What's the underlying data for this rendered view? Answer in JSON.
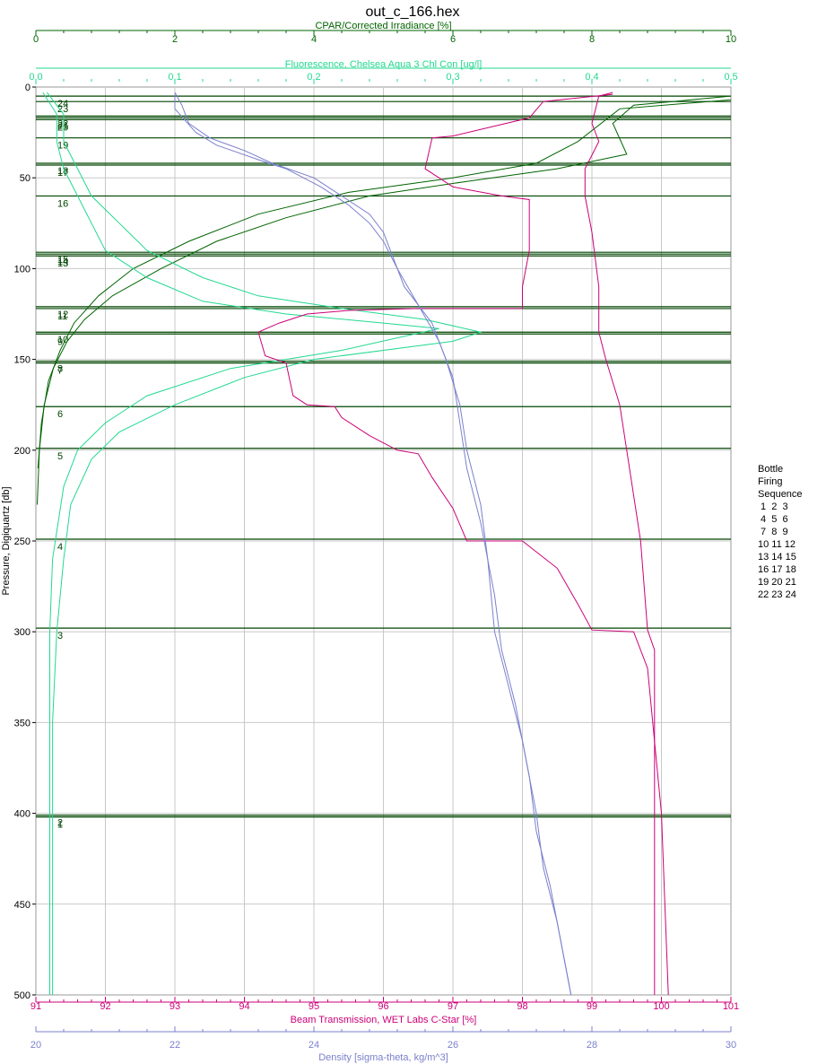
{
  "title": "out_c_166.hex",
  "chart_data": {
    "type": "line",
    "y_axis": {
      "label": "Pressure, Digiquartz [db]",
      "range": [
        0,
        500
      ],
      "ticks": [
        0,
        50,
        100,
        150,
        200,
        250,
        300,
        350,
        400,
        450,
        500
      ],
      "inverted": true
    },
    "x_axes": [
      {
        "key": "cpar",
        "label": "CPAR/Corrected Irradiance [%]",
        "position": "top-outer",
        "color": "#006400",
        "range": [
          0,
          10
        ],
        "ticks": [
          "0",
          "2",
          "4",
          "6",
          "8",
          "10"
        ]
      },
      {
        "key": "fluor",
        "label": "Fluorescence, Chelsea Aqua 3 Chl Con [ug/l]",
        "position": "top-inner",
        "color": "#22d990",
        "range": [
          0,
          0.5
        ],
        "ticks": [
          "0.0",
          "0.1",
          "0.2",
          "0.3",
          "0.4",
          "0.5"
        ]
      },
      {
        "key": "trans",
        "label": "Beam Transmission, WET Labs C-Star [%]",
        "position": "bottom-inner",
        "color": "#cc0077",
        "range": [
          91,
          101
        ],
        "ticks": [
          "91",
          "92",
          "93",
          "94",
          "95",
          "96",
          "97",
          "98",
          "99",
          "100",
          "101"
        ]
      },
      {
        "key": "density",
        "label": "Density [sigma-theta, kg/m^3]",
        "position": "bottom-outer",
        "color": "#7a80cc",
        "range": [
          20,
          30
        ],
        "ticks": [
          "20",
          "22",
          "24",
          "26",
          "28",
          "30"
        ]
      }
    ],
    "grid": true,
    "series": [
      {
        "axis": "cpar",
        "color": "#006400",
        "points": [
          [
            10,
            5
          ],
          [
            8.6,
            10
          ],
          [
            8.3,
            20
          ],
          [
            8.5,
            37
          ],
          [
            7.5,
            45
          ],
          [
            6.2,
            52
          ],
          [
            4.8,
            60
          ],
          [
            3.6,
            72
          ],
          [
            2.6,
            85
          ],
          [
            1.8,
            100
          ],
          [
            1.1,
            115
          ],
          [
            0.7,
            128
          ],
          [
            0.45,
            140
          ],
          [
            0.25,
            155
          ],
          [
            0.12,
            175
          ],
          [
            0.05,
            200
          ],
          [
            0.02,
            230
          ]
        ]
      },
      {
        "axis": "cpar",
        "color": "#006400",
        "points": [
          [
            10,
            7
          ],
          [
            8.4,
            12
          ],
          [
            7.8,
            30
          ],
          [
            7.2,
            42
          ],
          [
            6.0,
            50
          ],
          [
            4.5,
            58
          ],
          [
            3.2,
            70
          ],
          [
            2.2,
            85
          ],
          [
            1.4,
            100
          ],
          [
            0.9,
            115
          ],
          [
            0.55,
            130
          ],
          [
            0.35,
            145
          ],
          [
            0.18,
            162
          ],
          [
            0.08,
            185
          ],
          [
            0.03,
            210
          ]
        ]
      },
      {
        "axis": "fluor",
        "color": "#22d990",
        "points": [
          [
            0.008,
            3
          ],
          [
            0.02,
            15
          ],
          [
            0.02,
            30
          ],
          [
            0.03,
            45
          ],
          [
            0.04,
            60
          ],
          [
            0.06,
            75
          ],
          [
            0.08,
            90
          ],
          [
            0.12,
            105
          ],
          [
            0.16,
            115
          ],
          [
            0.22,
            122
          ],
          [
            0.28,
            128
          ],
          [
            0.32,
            135
          ],
          [
            0.3,
            140
          ],
          [
            0.2,
            150
          ],
          [
            0.15,
            160
          ],
          [
            0.1,
            175
          ],
          [
            0.06,
            190
          ],
          [
            0.04,
            205
          ],
          [
            0.025,
            230
          ],
          [
            0.02,
            260
          ],
          [
            0.015,
            300
          ],
          [
            0.012,
            350
          ],
          [
            0.012,
            400
          ],
          [
            0.012,
            450
          ],
          [
            0.012,
            500
          ]
        ]
      },
      {
        "axis": "fluor",
        "color": "#22d990",
        "points": [
          [
            0.005,
            3
          ],
          [
            0.015,
            15
          ],
          [
            0.015,
            30
          ],
          [
            0.02,
            45
          ],
          [
            0.03,
            60
          ],
          [
            0.04,
            75
          ],
          [
            0.05,
            90
          ],
          [
            0.08,
            105
          ],
          [
            0.12,
            118
          ],
          [
            0.18,
            125
          ],
          [
            0.25,
            130
          ],
          [
            0.29,
            133
          ],
          [
            0.22,
            145
          ],
          [
            0.14,
            155
          ],
          [
            0.08,
            170
          ],
          [
            0.05,
            185
          ],
          [
            0.03,
            200
          ],
          [
            0.02,
            220
          ],
          [
            0.012,
            260
          ],
          [
            0.01,
            300
          ],
          [
            0.01,
            350
          ],
          [
            0.01,
            400
          ],
          [
            0.01,
            450
          ],
          [
            0.01,
            500
          ]
        ]
      },
      {
        "axis": "trans",
        "color": "#cc0077",
        "points": [
          [
            99.3,
            4
          ],
          [
            98.3,
            8
          ],
          [
            98.1,
            17
          ],
          [
            97.0,
            27
          ],
          [
            96.7,
            28
          ],
          [
            96.6,
            45
          ],
          [
            97.0,
            55
          ],
          [
            97.7,
            60
          ],
          [
            98.1,
            62
          ],
          [
            98.1,
            90
          ],
          [
            98.0,
            110
          ],
          [
            98.0,
            122
          ],
          [
            96.5,
            122
          ],
          [
            95.5,
            123
          ],
          [
            94.9,
            125
          ],
          [
            94.5,
            130
          ],
          [
            94.2,
            135
          ],
          [
            94.3,
            148
          ],
          [
            94.6,
            152
          ],
          [
            94.7,
            170
          ],
          [
            94.9,
            175
          ],
          [
            95.3,
            176
          ],
          [
            95.4,
            182
          ],
          [
            95.8,
            192
          ],
          [
            96.2,
            200
          ],
          [
            96.5,
            202
          ],
          [
            96.7,
            215
          ],
          [
            97.0,
            232
          ],
          [
            97.2,
            250
          ],
          [
            98.0,
            250
          ],
          [
            98.5,
            265
          ],
          [
            98.8,
            285
          ],
          [
            99.0,
            299
          ],
          [
            99.6,
            300
          ],
          [
            99.8,
            320
          ],
          [
            100.0,
            400
          ],
          [
            100.1,
            500
          ]
        ]
      },
      {
        "axis": "trans",
        "color": "#cc0077",
        "points": [
          [
            99.3,
            3
          ],
          [
            99.1,
            5
          ],
          [
            99.0,
            20
          ],
          [
            99.1,
            30
          ],
          [
            98.9,
            45
          ],
          [
            98.9,
            60
          ],
          [
            99.0,
            80
          ],
          [
            99.1,
            110
          ],
          [
            99.1,
            135
          ],
          [
            99.2,
            150
          ],
          [
            99.4,
            175
          ],
          [
            99.5,
            200
          ],
          [
            99.7,
            250
          ],
          [
            99.8,
            299
          ],
          [
            99.9,
            310
          ],
          [
            99.9,
            400
          ],
          [
            99.9,
            450
          ],
          [
            99.9,
            500
          ]
        ]
      },
      {
        "axis": "density",
        "color": "#7a80cc",
        "points": [
          [
            22.0,
            3
          ],
          [
            22.1,
            10
          ],
          [
            22.2,
            20
          ],
          [
            22.5,
            28
          ],
          [
            23.0,
            35
          ],
          [
            23.4,
            42
          ],
          [
            24.0,
            50
          ],
          [
            24.4,
            60
          ],
          [
            24.8,
            70
          ],
          [
            25.0,
            80
          ],
          [
            25.1,
            90
          ],
          [
            25.3,
            110
          ],
          [
            25.7,
            130
          ],
          [
            25.9,
            150
          ],
          [
            26.1,
            175
          ],
          [
            26.2,
            200
          ],
          [
            26.4,
            230
          ],
          [
            26.5,
            260
          ],
          [
            26.6,
            300
          ],
          [
            26.8,
            330
          ],
          [
            27.0,
            360
          ],
          [
            27.2,
            400
          ],
          [
            27.3,
            430
          ],
          [
            27.5,
            460
          ],
          [
            27.7,
            500
          ]
        ]
      },
      {
        "axis": "density",
        "color": "#7a80cc",
        "points": [
          [
            22.0,
            4
          ],
          [
            22.0,
            12
          ],
          [
            22.3,
            25
          ],
          [
            22.6,
            32
          ],
          [
            23.2,
            40
          ],
          [
            23.6,
            45
          ],
          [
            24.1,
            55
          ],
          [
            24.5,
            65
          ],
          [
            24.8,
            75
          ],
          [
            25.0,
            85
          ],
          [
            25.2,
            100
          ],
          [
            25.5,
            120
          ],
          [
            25.8,
            140
          ],
          [
            26.0,
            160
          ],
          [
            26.1,
            185
          ],
          [
            26.2,
            210
          ],
          [
            26.4,
            240
          ],
          [
            26.6,
            280
          ],
          [
            26.7,
            310
          ],
          [
            26.9,
            340
          ],
          [
            27.1,
            380
          ],
          [
            27.2,
            410
          ],
          [
            27.4,
            440
          ],
          [
            27.6,
            480
          ],
          [
            27.7,
            500
          ]
        ]
      }
    ],
    "bottle_lines": [
      {
        "pressure": 5,
        "label": "24"
      },
      {
        "pressure": 8,
        "label": "23"
      },
      {
        "pressure": 16,
        "label": "22"
      },
      {
        "pressure": 17,
        "label": "21"
      },
      {
        "pressure": 18,
        "label": "20"
      },
      {
        "pressure": 28,
        "label": "19"
      },
      {
        "pressure": 42,
        "label": "18"
      },
      {
        "pressure": 43,
        "label": "17"
      },
      {
        "pressure": 60,
        "label": "16"
      },
      {
        "pressure": 91,
        "label": "15"
      },
      {
        "pressure": 92,
        "label": "14"
      },
      {
        "pressure": 93,
        "label": "13"
      },
      {
        "pressure": 121,
        "label": "12"
      },
      {
        "pressure": 122,
        "label": "11"
      },
      {
        "pressure": 135,
        "label": "10"
      },
      {
        "pressure": 136,
        "label": "9"
      },
      {
        "pressure": 151,
        "label": "8"
      },
      {
        "pressure": 152,
        "label": "7"
      },
      {
        "pressure": 176,
        "label": "6"
      },
      {
        "pressure": 199,
        "label": "5"
      },
      {
        "pressure": 249,
        "label": "4"
      },
      {
        "pressure": 298,
        "label": "3"
      },
      {
        "pressure": 401,
        "label": "2"
      },
      {
        "pressure": 402,
        "label": "1"
      }
    ]
  },
  "legend": {
    "lines": [
      "Bottle",
      "Firing",
      "Sequence",
      " 1  2  3",
      " 4  5  6",
      " 7  8  9",
      "10 11 12",
      "13 14 15",
      "16 17 18",
      "19 20 21",
      "22 23 24"
    ]
  }
}
